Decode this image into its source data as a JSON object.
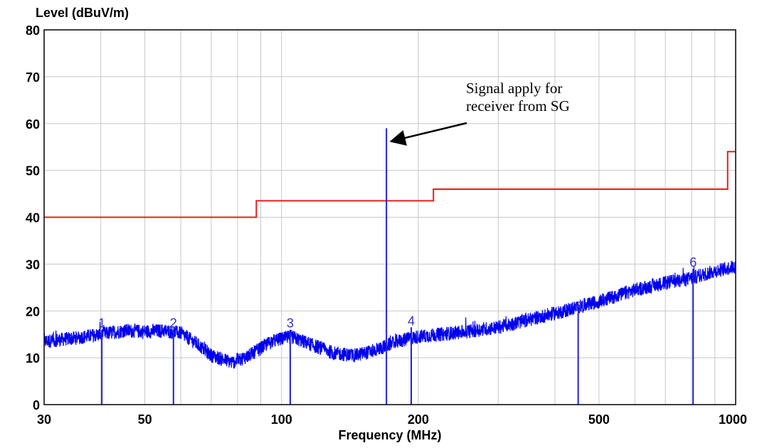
{
  "chart_data": {
    "type": "line",
    "title": "",
    "ylabel": "Level (dBuV/m)",
    "xlabel": "Frequency (MHz)",
    "x_scale": "log",
    "xlim": [
      30,
      1000
    ],
    "ylim": [
      0,
      80
    ],
    "grid": true,
    "x_tick_labels": [
      {
        "value": 30,
        "label": "30"
      },
      {
        "value": 50,
        "label": "50"
      },
      {
        "value": 100,
        "label": "100"
      },
      {
        "value": 200,
        "label": "200"
      },
      {
        "value": 500,
        "label": "500"
      },
      {
        "value": 1000,
        "label": "1000"
      }
    ],
    "x_grid_values": [
      40,
      60,
      70,
      80,
      90,
      300,
      400,
      600,
      700,
      800,
      900
    ],
    "y_tick_labels": [
      {
        "value": 0,
        "label": "0"
      },
      {
        "value": 10,
        "label": "10"
      },
      {
        "value": 20,
        "label": "20"
      },
      {
        "value": 30,
        "label": "30"
      },
      {
        "value": 40,
        "label": "40"
      },
      {
        "value": 50,
        "label": "50"
      },
      {
        "value": 60,
        "label": "60"
      },
      {
        "value": 70,
        "label": "70"
      },
      {
        "value": 80,
        "label": "80"
      }
    ],
    "limit_line": {
      "color": "#e02020",
      "points": [
        [
          30,
          40
        ],
        [
          88,
          40
        ],
        [
          88,
          43.5
        ],
        [
          216,
          43.5
        ],
        [
          216,
          46
        ],
        [
          960,
          46
        ],
        [
          960,
          54
        ],
        [
          1000,
          54
        ]
      ]
    },
    "noise_trace": {
      "color": "#0000ee",
      "points": [
        [
          30,
          13.5
        ],
        [
          35,
          14.2
        ],
        [
          40,
          15
        ],
        [
          45,
          15.8
        ],
        [
          50,
          15.6
        ],
        [
          55,
          15.8
        ],
        [
          60,
          15.3
        ],
        [
          65,
          13
        ],
        [
          70,
          10.5
        ],
        [
          78,
          9
        ],
        [
          85,
          10.5
        ],
        [
          95,
          13.5
        ],
        [
          105,
          14.5
        ],
        [
          115,
          13
        ],
        [
          130,
          11
        ],
        [
          145,
          10.5
        ],
        [
          160,
          11.5
        ],
        [
          180,
          13.5
        ],
        [
          200,
          14.5
        ],
        [
          250,
          15.5
        ],
        [
          300,
          16.5
        ],
        [
          400,
          19.5
        ],
        [
          500,
          22
        ],
        [
          600,
          24.5
        ],
        [
          700,
          26
        ],
        [
          800,
          27
        ],
        [
          900,
          28.5
        ],
        [
          1000,
          29.5
        ]
      ],
      "noise_amplitude": 1.5
    },
    "markers": [
      {
        "label": "1",
        "freq": 40.2,
        "level": 16
      },
      {
        "label": "2",
        "freq": 57.8,
        "level": 16
      },
      {
        "label": "3",
        "freq": 104.5,
        "level": 16
      },
      {
        "label": "4",
        "freq": 193,
        "level": 16.5
      },
      {
        "label": "5",
        "freq": 450,
        "level": 19.5
      },
      {
        "label": "6",
        "freq": 806,
        "level": 29
      }
    ],
    "signal_spike": {
      "freq": 170.2,
      "level": 59
    },
    "annotations": [
      {
        "lines": [
          "Signal apply for",
          "receiver from SG"
        ],
        "arrow_to": {
          "freq": 170.5,
          "level": 55
        }
      }
    ]
  }
}
